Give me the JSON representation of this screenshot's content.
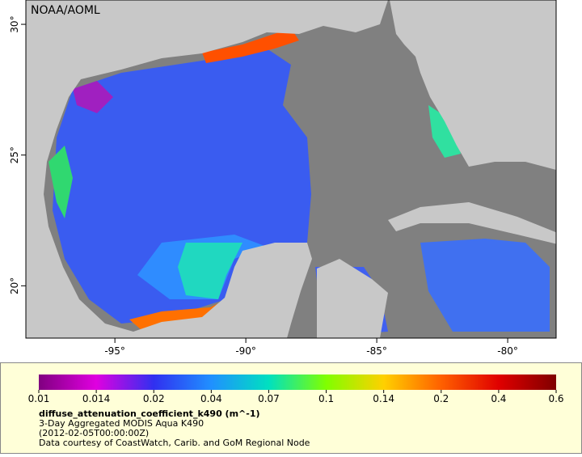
{
  "map": {
    "credit": "NOAA/AOML",
    "lonlim": [
      -98.4,
      -78.15
    ],
    "latlim": [
      18.0,
      30.93
    ],
    "lon_ticks": [
      {
        "value": -95,
        "label": "-95°"
      },
      {
        "value": -90,
        "label": "-90°"
      },
      {
        "value": -85,
        "label": "-85°"
      },
      {
        "value": -80,
        "label": "-80°"
      }
    ],
    "lat_ticks": [
      {
        "value": 20,
        "label": "20°"
      },
      {
        "value": 25,
        "label": "25°"
      },
      {
        "value": 30,
        "label": "30°"
      }
    ],
    "colorbar": {
      "ticks": [
        0.01,
        0.014,
        0.02,
        0.04,
        0.07,
        0.1,
        0.14,
        0.2,
        0.4,
        0.6
      ],
      "colors": [
        "#800080",
        "#e000e0",
        "#3030f0",
        "#2090ff",
        "#00e0c0",
        "#80ff00",
        "#ffd000",
        "#ff6000",
        "#e00000",
        "#800000"
      ]
    },
    "legend": {
      "variable": "diffuse_attenuation_coefficient_k490 (m^-1)",
      "lines": [
        "3-Day Aggregated MODIS Aqua K490",
        "(2012-02-05T00:00:00Z)",
        "Data courtesy of CoastWatch, Carib. and GoM Regional Node"
      ]
    }
  }
}
